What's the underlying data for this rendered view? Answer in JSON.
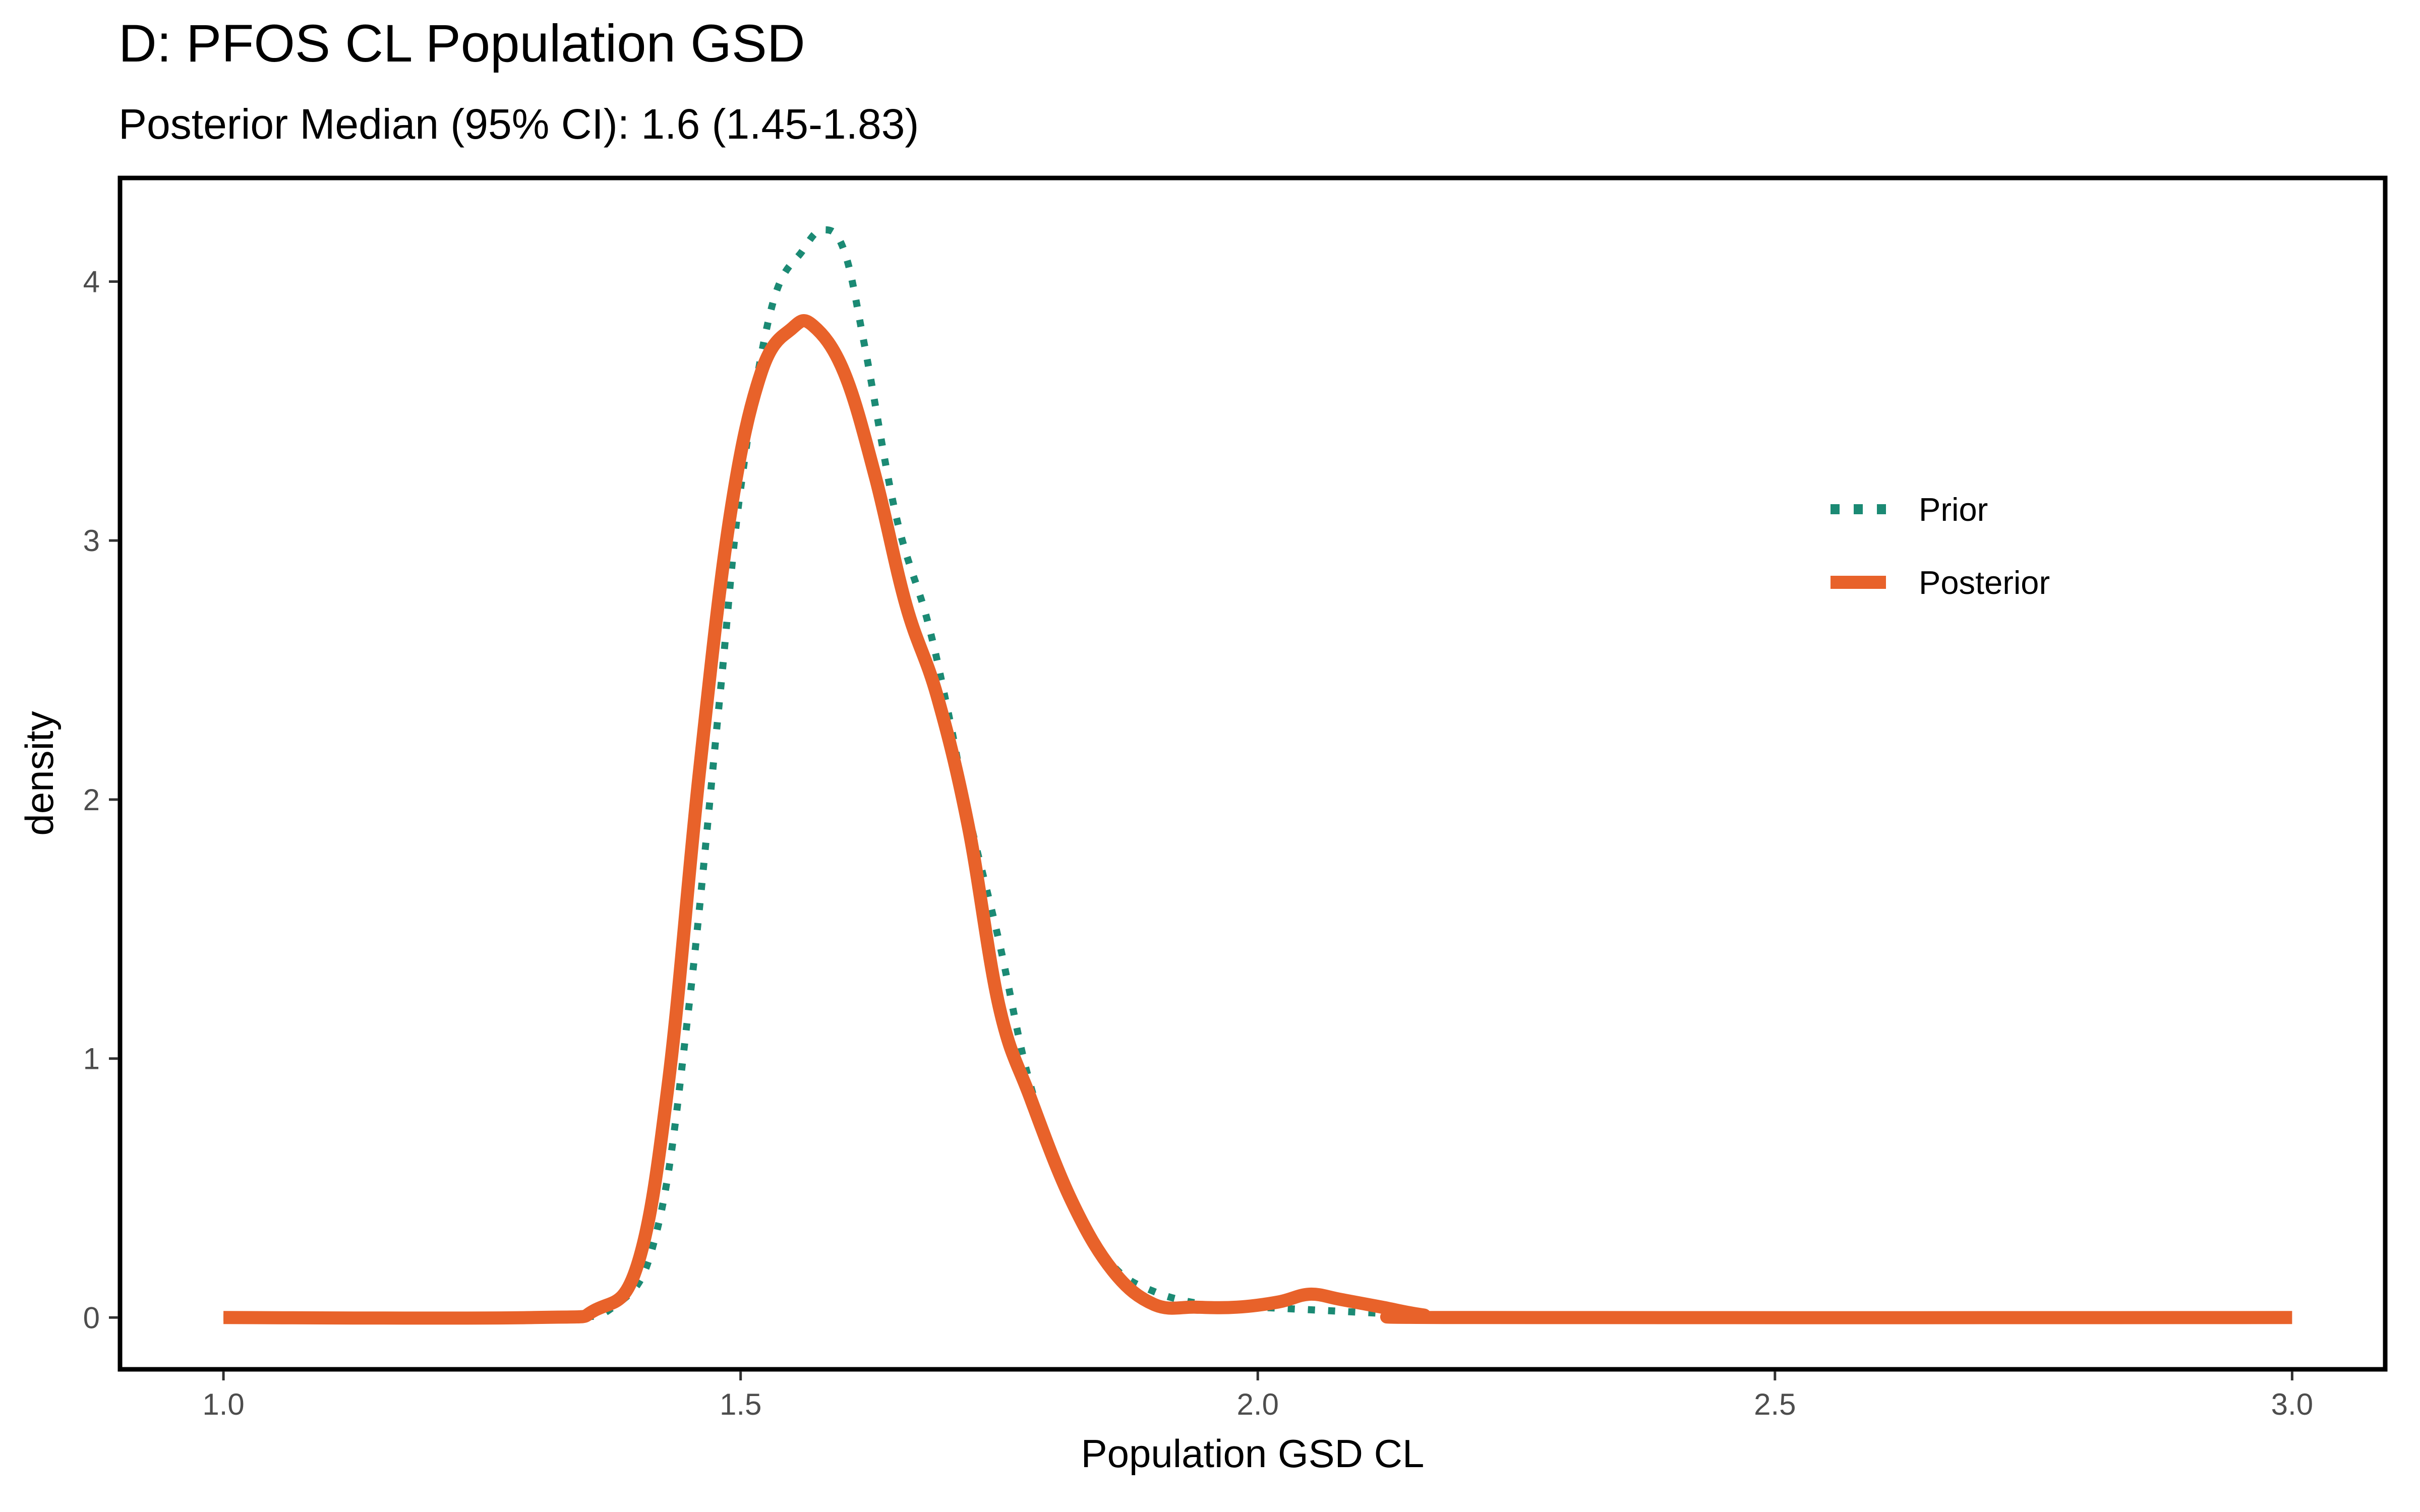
{
  "chart_data": {
    "type": "line",
    "title": "D: PFOS CL Population GSD",
    "subtitle": "Posterior Median (95% CI): 1.6 (1.45-1.83)",
    "xlabel": "Population GSD CL",
    "ylabel": "density",
    "xlim": [
      0.9,
      3.09
    ],
    "ylim": [
      -0.2,
      4.4
    ],
    "x_ticks": [
      "1.0",
      "1.5",
      "2.0",
      "2.5",
      "3.0"
    ],
    "y_ticks": [
      "0",
      "1",
      "2",
      "3",
      "4"
    ],
    "grid": false,
    "legend_position": "right",
    "series": [
      {
        "name": "Prior",
        "color": "#1b8a74",
        "dash": "dotted",
        "x": [
          1.0,
          1.3,
          1.38,
          1.42,
          1.45,
          1.48,
          1.5,
          1.53,
          1.56,
          1.58,
          1.6,
          1.62,
          1.65,
          1.68,
          1.7,
          1.72,
          1.75,
          1.78,
          1.82,
          1.86,
          1.9,
          1.95,
          2.0,
          2.05,
          2.1,
          2.15,
          2.2,
          3.0
        ],
        "values": [
          0,
          0,
          0.05,
          0.35,
          1.2,
          2.4,
          3.2,
          3.9,
          4.12,
          4.2,
          4.12,
          3.75,
          3.1,
          2.7,
          2.35,
          1.95,
          1.45,
          0.9,
          0.45,
          0.2,
          0.1,
          0.05,
          0.04,
          0.03,
          0.02,
          0.01,
          0,
          0
        ]
      },
      {
        "name": "Posterior",
        "color": "#e8622a",
        "dash": "solid",
        "x": [
          1.0,
          1.3,
          1.36,
          1.4,
          1.43,
          1.46,
          1.49,
          1.52,
          1.55,
          1.57,
          1.6,
          1.63,
          1.66,
          1.69,
          1.72,
          1.75,
          1.78,
          1.82,
          1.86,
          1.9,
          1.94,
          1.98,
          2.02,
          2.05,
          2.08,
          2.12,
          2.16,
          2.2,
          3.0
        ],
        "values": [
          0,
          0,
          0.03,
          0.2,
          0.9,
          2.1,
          3.1,
          3.65,
          3.82,
          3.83,
          3.65,
          3.25,
          2.75,
          2.4,
          1.9,
          1.2,
          0.85,
          0.45,
          0.18,
          0.05,
          0.04,
          0.04,
          0.06,
          0.09,
          0.07,
          0.04,
          0.01,
          0,
          0
        ]
      }
    ]
  }
}
